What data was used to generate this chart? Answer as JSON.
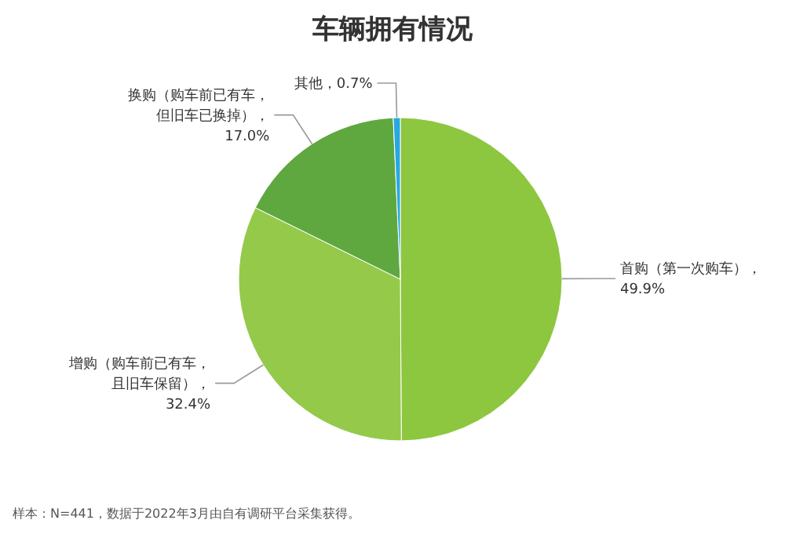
{
  "chart_data": {
    "type": "pie",
    "title": "车辆拥有情况",
    "categories": [
      "首购（第一次购车）",
      "增购（购车前已有车，且旧车保留）",
      "换购（购车前已有车，但旧车已换掉）",
      "其他"
    ],
    "values": [
      49.9,
      32.4,
      17.0,
      0.7
    ],
    "value_labels": [
      "，49.9%",
      "，32.4%",
      "，17.0%",
      "，0.7%"
    ],
    "colors": [
      "#8dc63f",
      "#95c94a",
      "#5fa840",
      "#29a8e0"
    ],
    "legend": false,
    "annotations": [
      "样本：N=441，数据于2022年3月由自有调研平台采集获得。"
    ]
  }
}
